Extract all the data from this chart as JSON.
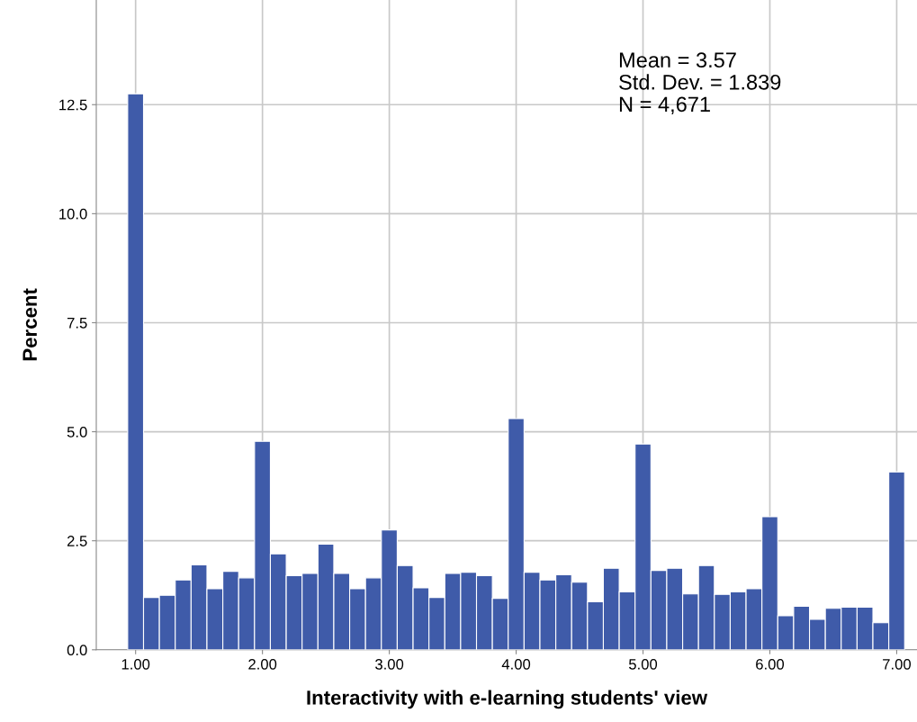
{
  "chart_data": {
    "type": "histogram",
    "xlabel": "Interactivity with e-learning students' view",
    "ylabel": "Percent",
    "annotations": [
      "Mean = 3.57",
      "Std. Dev. = 1.839",
      "N = 4,671"
    ],
    "bins": [
      0.9375,
      1.0625,
      1.1875,
      1.3125,
      1.4375,
      1.5625,
      1.6875,
      1.8125,
      1.9375,
      2.0625,
      2.1875,
      2.3125,
      2.4375,
      2.5625,
      2.6875,
      2.8125,
      2.9375,
      3.0625,
      3.1875,
      3.3125,
      3.4375,
      3.5625,
      3.6875,
      3.8125,
      3.9375,
      4.0625,
      4.1875,
      4.3125,
      4.4375,
      4.5625,
      4.6875,
      4.8125,
      4.9375,
      5.0625,
      5.1875,
      5.3125,
      5.4375,
      5.5625,
      5.6875,
      5.8125,
      5.9375,
      6.0625,
      6.1875,
      6.3125,
      6.4375,
      6.5625,
      6.6875,
      6.8125,
      6.9375,
      7.0625
    ],
    "values": [
      12.75,
      1.2,
      1.25,
      1.6,
      1.95,
      1.4,
      1.8,
      1.65,
      4.78,
      2.2,
      1.7,
      1.75,
      2.42,
      1.75,
      1.4,
      1.65,
      2.75,
      1.93,
      1.42,
      1.2,
      1.75,
      1.78,
      1.7,
      1.18,
      5.3,
      1.78,
      1.6,
      1.72,
      1.55,
      1.1,
      1.87,
      1.33,
      4.72,
      1.82,
      1.87,
      1.28,
      1.93,
      1.27,
      1.33,
      1.4,
      3.05,
      0.78,
      1.0,
      0.7,
      0.95,
      0.98,
      0.98,
      0.62,
      4.08
    ],
    "color": "#3f5ba9",
    "xlim": [
      0.69,
      7.16
    ],
    "ylim": [
      0,
      14.9
    ],
    "xticks": [
      {
        "value": 1,
        "label": "1.00"
      },
      {
        "value": 2,
        "label": "2.00"
      },
      {
        "value": 3,
        "label": "3.00"
      },
      {
        "value": 4,
        "label": "4.00"
      },
      {
        "value": 5,
        "label": "5.00"
      },
      {
        "value": 6,
        "label": "6.00"
      },
      {
        "value": 7,
        "label": "7.00"
      }
    ],
    "yticks": [
      {
        "value": 0,
        "label": "0.0"
      },
      {
        "value": 2.5,
        "label": "2.5"
      },
      {
        "value": 5,
        "label": "5.0"
      },
      {
        "value": 7.5,
        "label": "7.5"
      },
      {
        "value": 10,
        "label": "10.0"
      },
      {
        "value": 12.5,
        "label": "12.5"
      }
    ],
    "grid": true
  }
}
